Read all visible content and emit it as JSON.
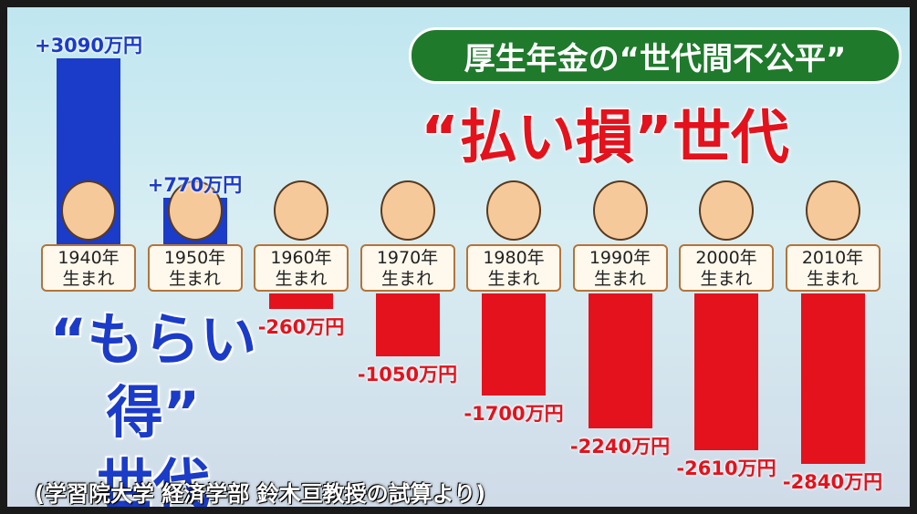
{
  "chart_data": {
    "type": "bar",
    "title": "厚生年金の“世代間不公平”",
    "annotations": [
      "“払い損”世代",
      "“もらい得”\n世代",
      "(学習院大学 経済学部 鈴木亘教授の試算より)"
    ],
    "categories": [
      "1940年\n生まれ",
      "1950年\n生まれ",
      "1960年\n生まれ",
      "1970年\n生まれ",
      "1980年\n生まれ",
      "1990年\n生まれ",
      "2000年\n生まれ",
      "2010年\n生まれ"
    ],
    "values": [
      3090,
      770,
      -260,
      -1050,
      -1700,
      -2240,
      -2610,
      -2840
    ],
    "value_labels": [
      "+3090万円",
      "+770万円",
      "-260万円",
      "-1050万円",
      "-1700万円",
      "-2240万円",
      "-2610万円",
      "-2840万円"
    ],
    "colors": [
      "#1b3cc8",
      "#1b3cc8",
      "#e3121c",
      "#e3121c",
      "#e3121c",
      "#e3121c",
      "#e3121c",
      "#e3121c"
    ]
  }
}
